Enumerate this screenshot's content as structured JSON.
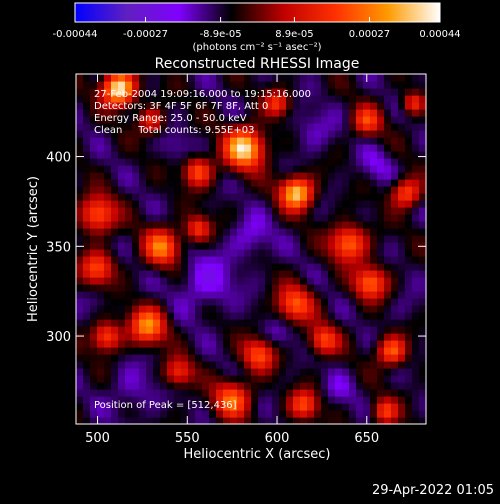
{
  "colorbar": {
    "tick_labels": [
      "-0.00044",
      "-0.00027",
      "-8.9e-05",
      "8.9e-05",
      "0.00027",
      "0.00044"
    ],
    "tick_values": [
      -0.00044,
      -0.00027,
      -8.9e-05,
      8.9e-05,
      0.00027,
      0.00044
    ],
    "min": -0.00044,
    "max": 0.00044,
    "unit_label": "(photons cm⁻² s⁻¹ asec⁻²)",
    "colormap": [
      "#0000ff",
      "#6020c0",
      "#8000ff",
      "#000000",
      "#c00000",
      "#ff3000",
      "#ff9a00",
      "#ffffff"
    ]
  },
  "chart": {
    "title": "Reconstructed RHESSI Image",
    "xlabel": "Heliocentric X (arcsec)",
    "ylabel": "Heliocentric Y (arcsec)",
    "info_lines": [
      "27-Feb-2004 19:09:16.000 to 19:15:16.000",
      "Detectors: 3F 4F 5F 6F 7F 8F, Att 0",
      "Energy Range: 25.0 - 50.0 keV",
      "Clean     Total counts: 9.55E+03"
    ],
    "peak_label": "Position of Peak = [512,436]"
  },
  "footer": {
    "timestamp": "29-Apr-2022 01:05"
  },
  "chart_data": {
    "type": "heatmap",
    "title": "Reconstructed RHESSI Image",
    "xlabel": "Heliocentric X (arcsec)",
    "ylabel": "Heliocentric Y (arcsec)",
    "xlim": [
      488,
      683
    ],
    "ylim": [
      251,
      446
    ],
    "xticks": [
      500,
      550,
      600,
      650
    ],
    "yticks": [
      300,
      350,
      400
    ],
    "peak": [
      512,
      436
    ],
    "zlim": [
      -0.00044,
      0.00044
    ],
    "colormap": [
      "#0000ff",
      "#6020c0",
      "#8000ff",
      "#000000",
      "#c00000",
      "#ff3000",
      "#ff9a00",
      "#ffffff"
    ],
    "grid_step_arcsec": 3.9,
    "hotspots": [
      {
        "x": 512,
        "y": 438,
        "r": 9,
        "v": 0.00044
      },
      {
        "x": 582,
        "y": 405,
        "r": 11,
        "v": 0.0004
      },
      {
        "x": 611,
        "y": 380,
        "r": 9,
        "v": 0.00038
      },
      {
        "x": 556,
        "y": 392,
        "r": 8,
        "v": 0.00022
      },
      {
        "x": 500,
        "y": 368,
        "r": 10,
        "v": 0.00024
      },
      {
        "x": 500,
        "y": 338,
        "r": 9,
        "v": 0.0002
      },
      {
        "x": 536,
        "y": 350,
        "r": 10,
        "v": 0.00026
      },
      {
        "x": 556,
        "y": 360,
        "r": 7,
        "v": 0.00018
      },
      {
        "x": 640,
        "y": 352,
        "r": 10,
        "v": 0.00026
      },
      {
        "x": 652,
        "y": 330,
        "r": 9,
        "v": 0.00024
      },
      {
        "x": 672,
        "y": 380,
        "r": 8,
        "v": 0.00022
      },
      {
        "x": 528,
        "y": 306,
        "r": 10,
        "v": 0.00028
      },
      {
        "x": 505,
        "y": 300,
        "r": 8,
        "v": 0.00022
      },
      {
        "x": 610,
        "y": 318,
        "r": 10,
        "v": 0.00022
      },
      {
        "x": 626,
        "y": 298,
        "r": 8,
        "v": 0.0002
      },
      {
        "x": 590,
        "y": 290,
        "r": 9,
        "v": 0.00022
      },
      {
        "x": 575,
        "y": 265,
        "r": 10,
        "v": 0.00024
      },
      {
        "x": 615,
        "y": 262,
        "r": 8,
        "v": 0.0002
      },
      {
        "x": 664,
        "y": 292,
        "r": 8,
        "v": 0.00024
      },
      {
        "x": 660,
        "y": 258,
        "r": 7,
        "v": 0.00018
      },
      {
        "x": 650,
        "y": 420,
        "r": 8,
        "v": 0.00018
      },
      {
        "x": 600,
        "y": 430,
        "r": 7,
        "v": 0.00016
      },
      {
        "x": 530,
        "y": 420,
        "r": 7,
        "v": 0.00014
      },
      {
        "x": 676,
        "y": 430,
        "r": 6,
        "v": 0.00016
      },
      {
        "x": 545,
        "y": 280,
        "r": 8,
        "v": 0.00016
      }
    ],
    "coldspots": [
      {
        "x": 560,
        "y": 330,
        "r": 16,
        "v": -0.0002
      },
      {
        "x": 585,
        "y": 355,
        "r": 12,
        "v": -0.00018
      },
      {
        "x": 620,
        "y": 415,
        "r": 12,
        "v": -0.00016
      },
      {
        "x": 545,
        "y": 405,
        "r": 9,
        "v": -0.00014
      },
      {
        "x": 655,
        "y": 395,
        "r": 10,
        "v": -0.00016
      },
      {
        "x": 600,
        "y": 300,
        "r": 10,
        "v": -0.00015
      },
      {
        "x": 520,
        "y": 270,
        "r": 14,
        "v": -0.00016
      },
      {
        "x": 635,
        "y": 270,
        "r": 10,
        "v": -0.00014
      },
      {
        "x": 672,
        "y": 315,
        "r": 9,
        "v": -0.00012
      },
      {
        "x": 500,
        "y": 320,
        "r": 7,
        "v": -0.00012
      }
    ]
  }
}
